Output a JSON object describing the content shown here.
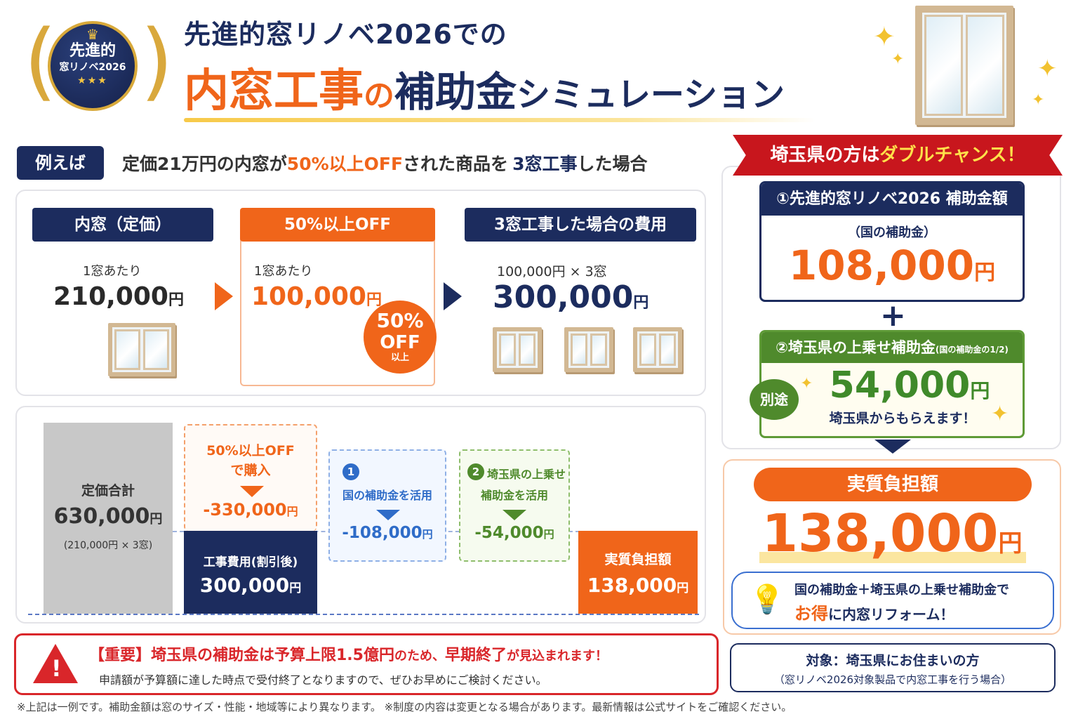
{
  "badge": {
    "line1": "先進的",
    "line2": "窓リノベ2026",
    "crown": "♛",
    "stars": "★★★"
  },
  "header": {
    "title_line1": "先進的窓リノベ2026での",
    "title_big": "内窓工事",
    "title_no": "の",
    "title_mid": "補助金",
    "title_small": "シミュレーション"
  },
  "example": {
    "tag": "例えば",
    "text_a": "定価21万円の内窓が",
    "text_b": "50%以上OFF",
    "text_c": "された商品を",
    "text_d": "3窓工事",
    "text_e": "した場合"
  },
  "steps": [
    {
      "head": "内窓（定価）",
      "per": "1窓あたり",
      "price": "210,000",
      "yen": "円"
    },
    {
      "head": "50%以上OFF",
      "per": "1窓あたり",
      "price": "100,000",
      "yen": "円",
      "stamp_pct": "50%",
      "stamp_off": "OFF",
      "stamp_sub": "以上"
    },
    {
      "head": "3窓工事した場合の費用",
      "per": "100,000円 × 3窓",
      "price": "300,000",
      "yen": "円"
    }
  ],
  "bars": {
    "list_label": "定価合計",
    "list_value": "630,000",
    "list_yen": "円",
    "list_sub": "(210,000円 × 3窓)",
    "discount_l1": "50%以上OFF",
    "discount_l2": "で購入",
    "discount_value": "-330,000",
    "discount_yen": "円",
    "cost_label": "工事費用(割引後)",
    "cost_value": "300,000",
    "cost_yen": "円",
    "national_num": "1",
    "national_label": "国の補助金を活用",
    "national_value": "-108,000",
    "national_yen": "円",
    "pref_num": "2",
    "pref_l1": "埼玉県の上乗せ",
    "pref_l2": "補助金を活用",
    "pref_value": "-54,000",
    "pref_yen": "円",
    "final_label": "実質負担額",
    "final_value": "138,000",
    "final_yen": "円"
  },
  "right": {
    "ribbon_a": "埼玉県の方は",
    "ribbon_b": "ダブルチャンス！",
    "box1_head": "①先進的窓リノベ2026 補助金額",
    "box1_sub": "（国の補助金）",
    "box1_value": "108,000",
    "box1_yen": "円",
    "plus": "+",
    "box2_head": "②埼玉県の上乗せ補助金",
    "box2_head_small": "(国の補助金の1/2)",
    "box2_tag": "別途",
    "box2_value": "54,000",
    "box2_yen": "円",
    "box2_sub": "埼玉県からもらえます！",
    "final_head": "実質負担額",
    "final_value": "138,000",
    "final_yen": "円",
    "tip_l1": "国の補助金＋埼玉県の上乗せ補助金で",
    "tip_l2a": "お得",
    "tip_l2b": "に内窓リフォーム！",
    "target_l1": "対象：埼玉県にお住まいの方",
    "target_l2": "（窓リノベ2026対象製品で内窓工事を行う場合）"
  },
  "warning": {
    "l1a": "【重要】埼玉県の補助金は予算上限1.5億円",
    "l1b": "のため、",
    "l1c": "早期終了",
    "l1d": "が見込まれます！",
    "l2": "申請額が予算額に達した時点で受付終了となりますので、ぜひお早めにご検討ください。"
  },
  "footnote": "※上記は一例です。補助金額は窓のサイズ・性能・地域等により異なります。 ※制度の内容は変更となる場合があります。最新情報は公式サイトをご確認ください。"
}
